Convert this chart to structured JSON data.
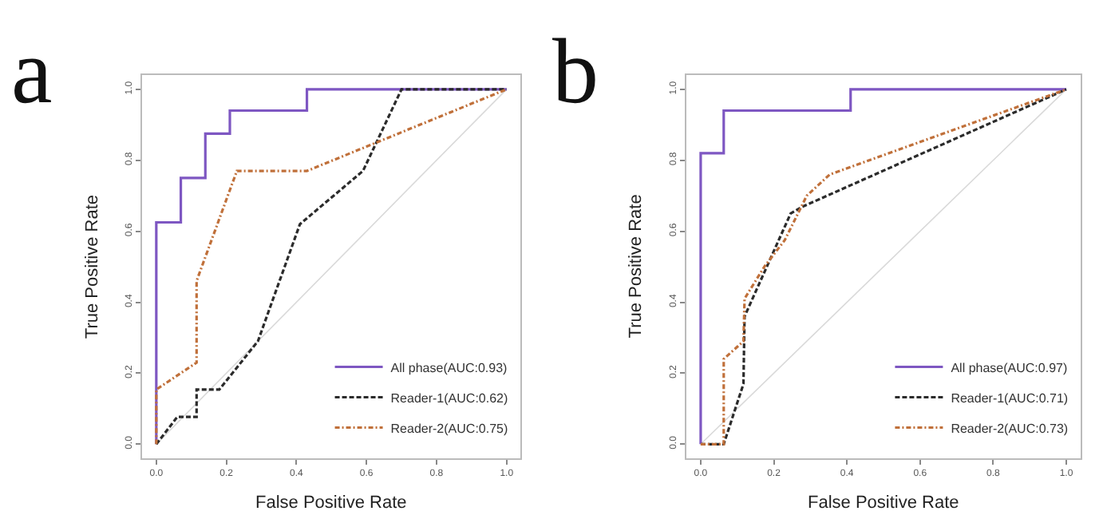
{
  "chart_data": [
    {
      "type": "line",
      "title": "a",
      "xlabel": "False Positive Rate",
      "ylabel": "True Positive Rate",
      "xlim": [
        -0.04,
        1.04
      ],
      "ylim": [
        -0.04,
        1.04
      ],
      "xticks": [
        {
          "value": 0,
          "label": "0.0"
        },
        {
          "value": 0.2,
          "label": "0.2"
        },
        {
          "value": 0.4,
          "label": "0.4"
        },
        {
          "value": 0.6,
          "label": "0.6"
        },
        {
          "value": 0.8,
          "label": "0.8"
        },
        {
          "value": 1,
          "label": "1.0"
        }
      ],
      "yticks": [
        {
          "value": 0,
          "label": "0.0"
        },
        {
          "value": 0.2,
          "label": "0.2"
        },
        {
          "value": 0.4,
          "label": "0.4"
        },
        {
          "value": 0.6,
          "label": "0.6"
        },
        {
          "value": 0.8,
          "label": "0.8"
        },
        {
          "value": 1,
          "label": "1.0"
        }
      ],
      "legend": "bottom right",
      "series": [
        {
          "color": "#d9d9d9",
          "line_style": "solid",
          "x": [
            0,
            1
          ],
          "values": [
            0,
            1
          ]
        },
        {
          "name": "All phase(AUC:0.93)",
          "color": "#7e57c2",
          "line_style": "solid",
          "x": [
            0,
            0,
            0.07,
            0.07,
            0.14,
            0.14,
            0.21,
            0.21,
            0.43,
            0.43,
            1
          ],
          "values": [
            0,
            0.625,
            0.625,
            0.75,
            0.75,
            0.875,
            0.875,
            0.94,
            0.94,
            1,
            1
          ]
        },
        {
          "name": "Reader-1(AUC:0.62)",
          "color": "#2b2b2b",
          "line_style": "dashed",
          "x": [
            0,
            0.06,
            0.115,
            0.115,
            0.18,
            0.29,
            0.41,
            0.59,
            0.7,
            1
          ],
          "values": [
            0,
            0.077,
            0.077,
            0.154,
            0.154,
            0.29,
            0.62,
            0.77,
            1,
            1
          ]
        },
        {
          "name": "Reader-2(AUC:0.75)",
          "color": "#c0703a",
          "line_style": "dotted",
          "x": [
            0,
            0,
            0.115,
            0.115,
            0.23,
            0.43,
            1
          ],
          "values": [
            0,
            0.154,
            0.23,
            0.46,
            0.77,
            0.77,
            1
          ]
        }
      ]
    },
    {
      "type": "line",
      "title": "b",
      "xlabel": "False Positive Rate",
      "ylabel": "True Positive Rate",
      "xlim": [
        -0.04,
        1.04
      ],
      "ylim": [
        -0.04,
        1.04
      ],
      "xticks": [
        {
          "value": 0,
          "label": "0.0"
        },
        {
          "value": 0.2,
          "label": "0.2"
        },
        {
          "value": 0.4,
          "label": "0.4"
        },
        {
          "value": 0.6,
          "label": "0.6"
        },
        {
          "value": 0.8,
          "label": "0.8"
        },
        {
          "value": 1,
          "label": "1.0"
        }
      ],
      "yticks": [
        {
          "value": 0,
          "label": "0.0"
        },
        {
          "value": 0.2,
          "label": "0.2"
        },
        {
          "value": 0.4,
          "label": "0.4"
        },
        {
          "value": 0.6,
          "label": "0.6"
        },
        {
          "value": 0.8,
          "label": "0.8"
        },
        {
          "value": 1,
          "label": "1.0"
        }
      ],
      "legend": "bottom right",
      "series": [
        {
          "color": "#d9d9d9",
          "line_style": "solid",
          "x": [
            0,
            1
          ],
          "values": [
            0,
            1
          ]
        },
        {
          "name": "All phase(AUC:0.97)",
          "color": "#7e57c2",
          "line_style": "solid",
          "x": [
            0,
            0,
            0.063,
            0.063,
            0.41,
            0.41,
            1
          ],
          "values": [
            0,
            0.82,
            0.82,
            0.94,
            0.94,
            1,
            1
          ]
        },
        {
          "name": "Reader-1(AUC:0.71)",
          "color": "#2b2b2b",
          "line_style": "dashed",
          "x": [
            0,
            0.063,
            0.117,
            0.12,
            0.246,
            0.28,
            1
          ],
          "values": [
            0,
            0,
            0.17,
            0.36,
            0.65,
            0.67,
            1
          ]
        },
        {
          "name": "Reader-2(AUC:0.73)",
          "color": "#c0703a",
          "line_style": "dotted",
          "x": [
            0,
            0.063,
            0.063,
            0.117,
            0.12,
            0.174,
            0.23,
            0.29,
            0.353,
            1
          ],
          "values": [
            0,
            0,
            0.24,
            0.29,
            0.41,
            0.5,
            0.575,
            0.7,
            0.76,
            1
          ]
        }
      ]
    }
  ]
}
